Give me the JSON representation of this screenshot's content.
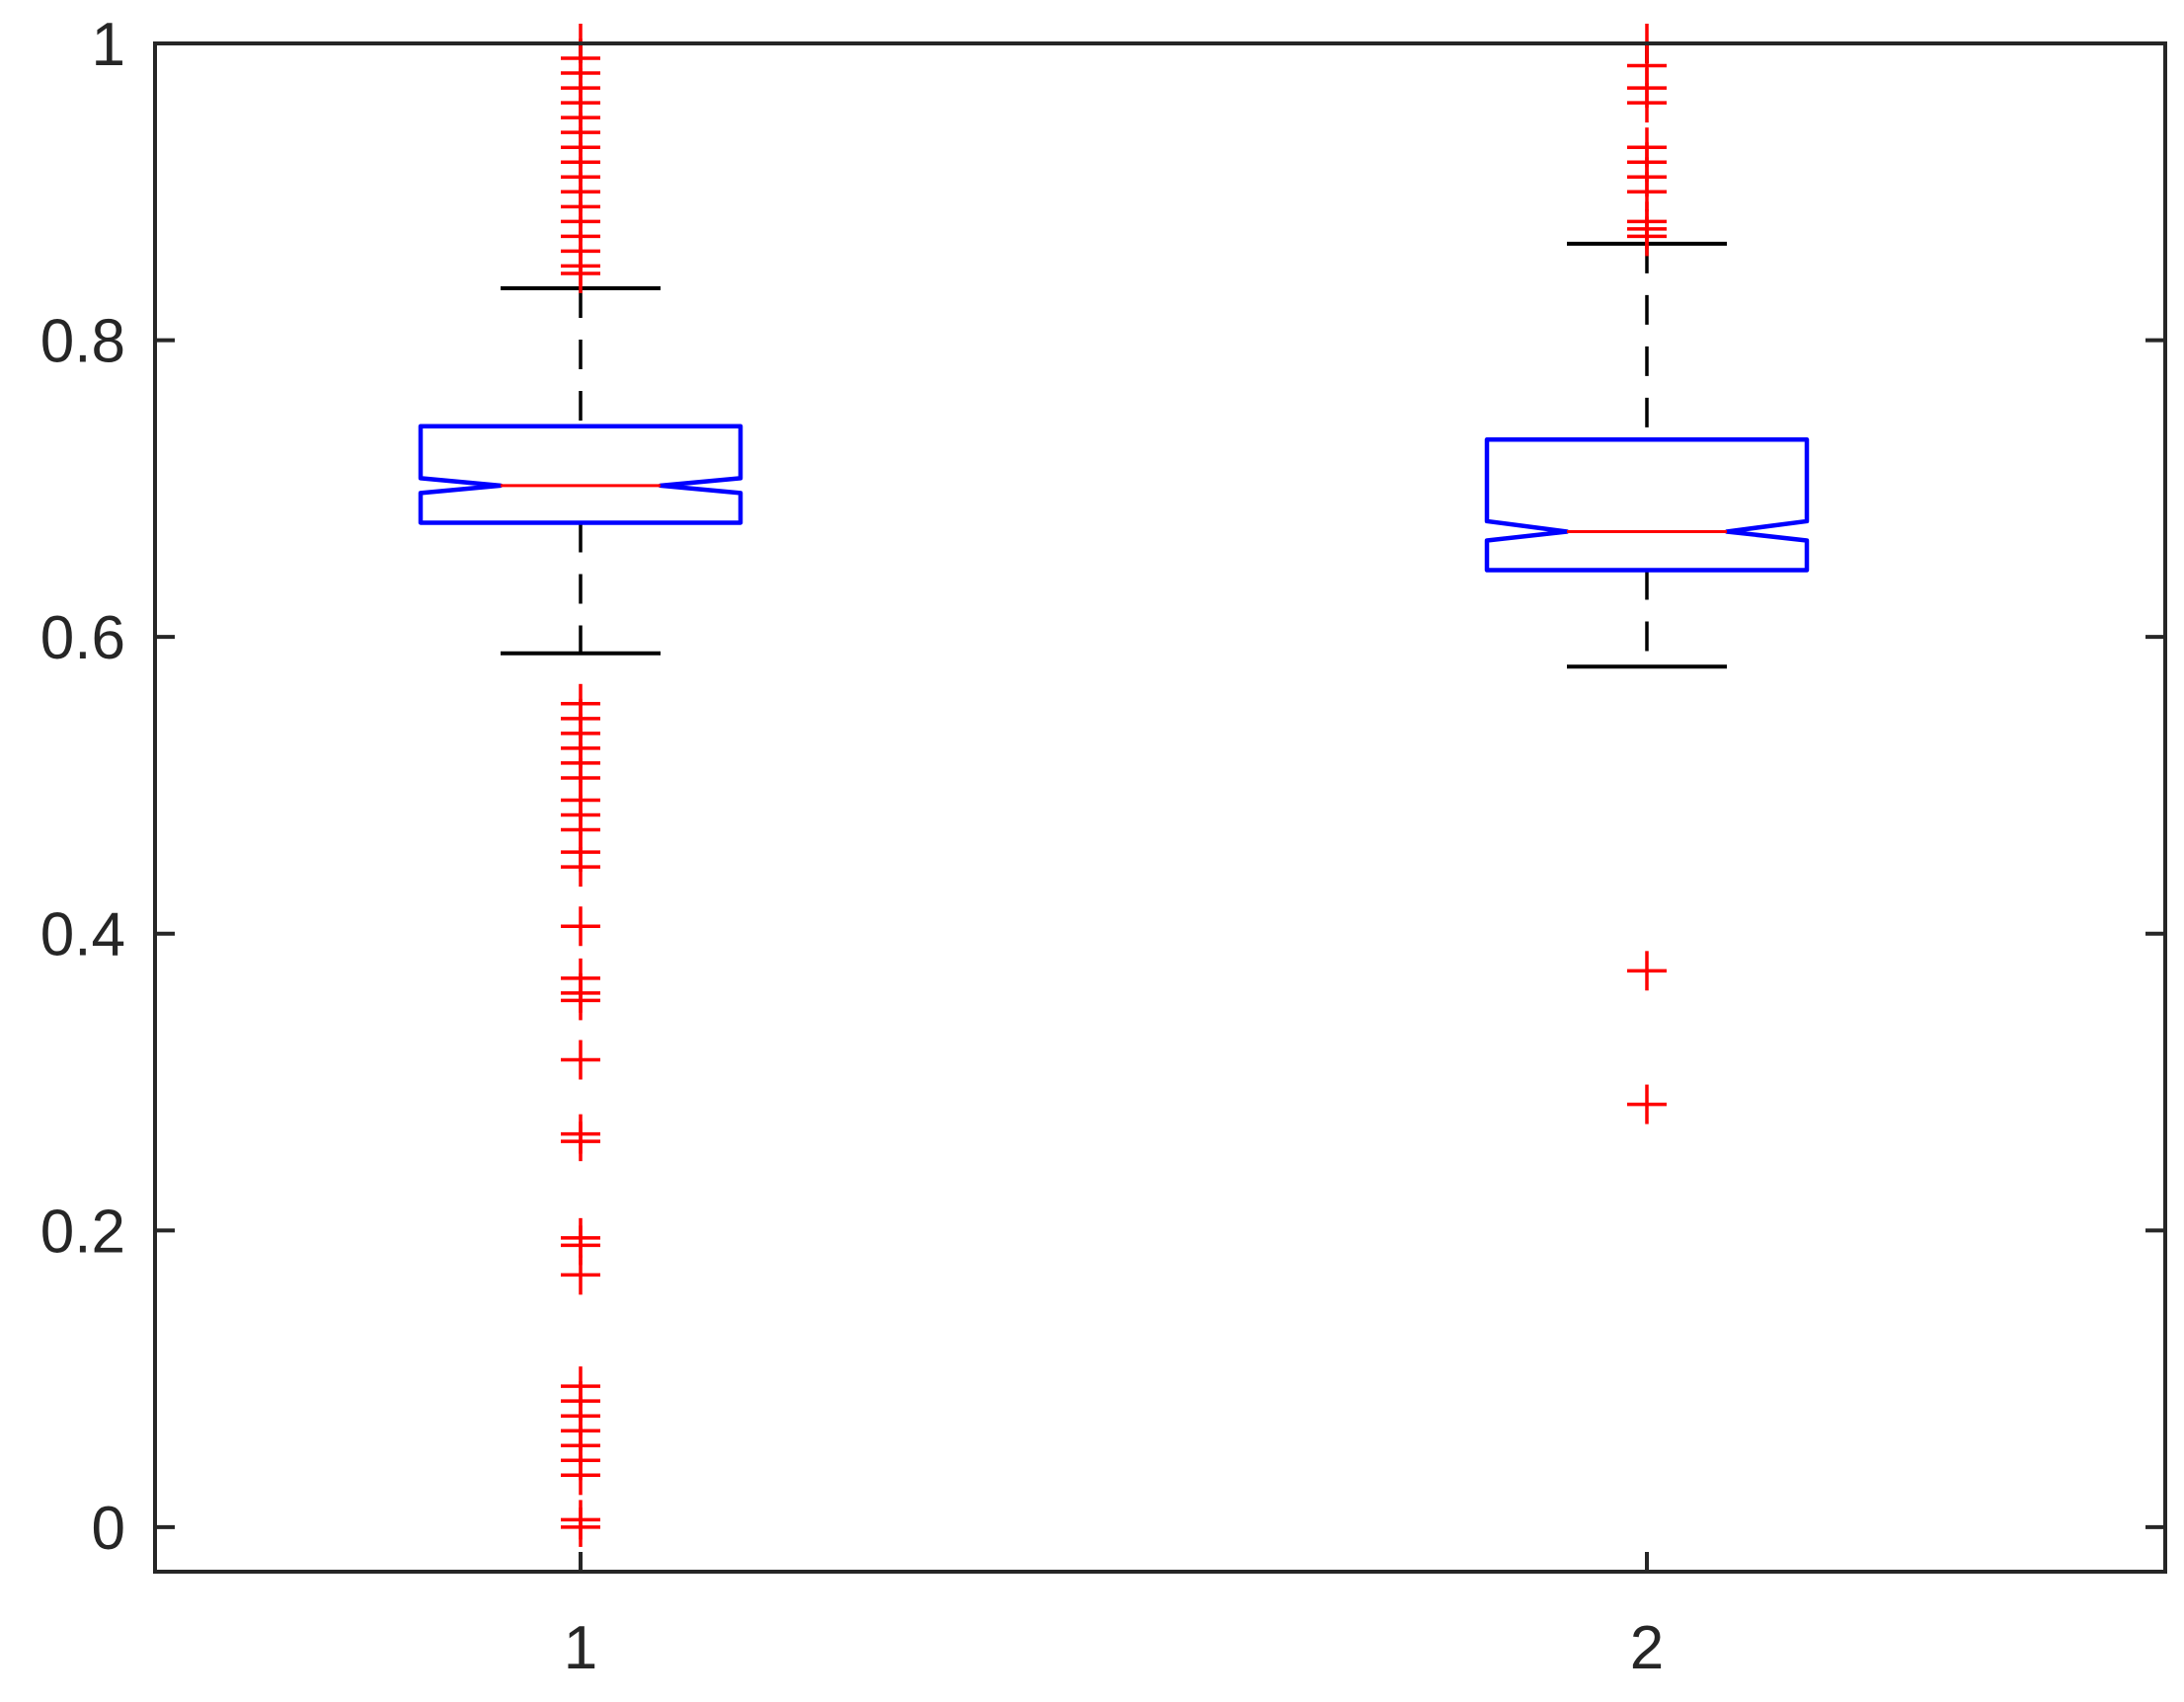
{
  "chart_data": {
    "type": "boxplot",
    "notched": true,
    "categories": [
      "1",
      "2"
    ],
    "ylim": [
      -0.03,
      1
    ],
    "yticks": [
      0,
      0.2,
      0.4,
      0.6,
      0.8,
      1
    ],
    "ytick_labels": [
      "0",
      "0.2",
      "0.4",
      "0.6",
      "0.8",
      "1"
    ],
    "xtick_labels": [
      "1",
      "2"
    ],
    "colors": {
      "box": "#0000ff",
      "median": "#ff0000",
      "whisker": "#000000",
      "outlier": "#ff0000",
      "axes": "#262626"
    },
    "series": [
      {
        "category": "1",
        "q1": 0.677,
        "median": 0.702,
        "q3": 0.742,
        "notch_low": 0.697,
        "notch_high": 0.707,
        "whisker_low": 0.589,
        "whisker_high": 0.835,
        "outliers": [
          1.0,
          0.99,
          0.98,
          0.97,
          0.96,
          0.95,
          0.94,
          0.93,
          0.92,
          0.91,
          0.9,
          0.89,
          0.88,
          0.87,
          0.86,
          0.85,
          0.845,
          0.555,
          0.545,
          0.535,
          0.525,
          0.515,
          0.505,
          0.49,
          0.48,
          0.47,
          0.455,
          0.445,
          0.405,
          0.37,
          0.36,
          0.355,
          0.315,
          0.265,
          0.26,
          0.195,
          0.19,
          0.17,
          0.095,
          0.085,
          0.075,
          0.065,
          0.055,
          0.045,
          0.035,
          0.005,
          0.0
        ]
      },
      {
        "category": "2",
        "q1": 0.645,
        "median": 0.671,
        "q3": 0.733,
        "notch_low": 0.665,
        "notch_high": 0.678,
        "whisker_low": 0.58,
        "whisker_high": 0.865,
        "outliers": [
          1.0,
          0.985,
          0.97,
          0.96,
          0.93,
          0.92,
          0.91,
          0.9,
          0.88,
          0.875,
          0.87,
          0.375,
          0.285
        ]
      }
    ]
  }
}
